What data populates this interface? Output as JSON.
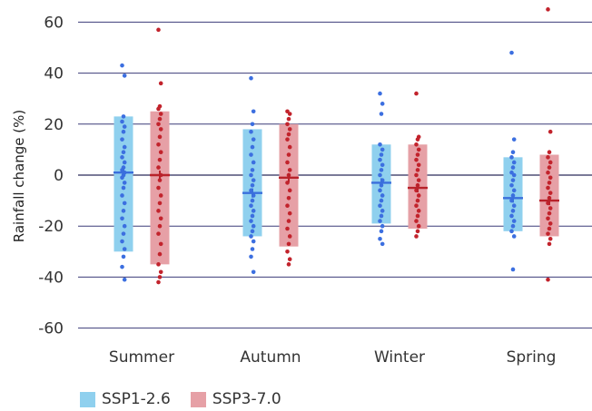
{
  "chart_data": {
    "type": "box",
    "ylabel": "Rainfall change (%)",
    "ylim": [
      -60,
      65
    ],
    "yticks": [
      -60,
      -40,
      -20,
      0,
      20,
      40,
      60
    ],
    "categories": [
      "Summer",
      "Autumn",
      "Winter",
      "Spring"
    ],
    "grid": "horizontal",
    "legend_position": "bottom-left",
    "series": [
      {
        "name": "SSP1-2.6",
        "box_color": "#8fd0ee",
        "point_color": "#3c6fe0",
        "median_color": "#3a6fdc",
        "boxes": [
          {
            "low": -30,
            "high": 23,
            "median": 1
          },
          {
            "low": -24,
            "high": 18,
            "median": -7
          },
          {
            "low": -19,
            "high": 12,
            "median": -3
          },
          {
            "low": -22,
            "high": 7,
            "median": -9
          }
        ],
        "points": [
          [
            43,
            39,
            23,
            21,
            19,
            17,
            14,
            11,
            9,
            7,
            5,
            3,
            2,
            1,
            0,
            -1,
            -3,
            -5,
            -8,
            -11,
            -14,
            -17,
            -20,
            -23,
            -26,
            -29,
            -32,
            -36,
            -41
          ],
          [
            38,
            25,
            20,
            17,
            14,
            11,
            8,
            5,
            2,
            0,
            -2,
            -4,
            -6,
            -8,
            -10,
            -12,
            -14,
            -16,
            -18,
            -20,
            -22,
            -24,
            -26,
            -29,
            -32,
            -38
          ],
          [
            32,
            28,
            24,
            12,
            10,
            8,
            6,
            4,
            2,
            0,
            -2,
            -4,
            -6,
            -8,
            -10,
            -12,
            -14,
            -16,
            -18,
            -20,
            -22,
            -25,
            -27
          ],
          [
            48,
            14,
            9,
            7,
            5,
            3,
            1,
            0,
            -2,
            -4,
            -6,
            -8,
            -10,
            -12,
            -14,
            -16,
            -18,
            -20,
            -22,
            -24,
            -37
          ]
        ]
      },
      {
        "name": "SSP3-7.0",
        "box_color": "#e6a0a6",
        "point_color": "#c2232c",
        "median_color": "#b8222a",
        "boxes": [
          {
            "low": -35,
            "high": 25,
            "median": 0
          },
          {
            "low": -28,
            "high": 20,
            "median": -1
          },
          {
            "low": -21,
            "high": 12,
            "median": -5
          },
          {
            "low": -24,
            "high": 8,
            "median": -10
          }
        ],
        "points": [
          [
            57,
            36,
            27,
            26,
            24,
            22,
            20,
            18,
            15,
            12,
            9,
            6,
            3,
            0,
            -2,
            -5,
            -8,
            -11,
            -14,
            -17,
            -20,
            -23,
            -27,
            -31,
            -35,
            -38,
            -40,
            -42
          ],
          [
            25,
            24,
            22,
            20,
            18,
            16,
            14,
            11,
            8,
            5,
            2,
            0,
            -3,
            -6,
            -9,
            -12,
            -15,
            -18,
            -21,
            -24,
            -27,
            -30,
            -33,
            -35
          ],
          [
            32,
            15,
            14,
            12,
            10,
            8,
            6,
            4,
            2,
            0,
            -2,
            -4,
            -6,
            -8,
            -10,
            -12,
            -14,
            -16,
            -18,
            -20,
            -22,
            -24
          ],
          [
            65,
            17,
            9,
            7,
            5,
            3,
            1,
            -1,
            -3,
            -5,
            -7,
            -9,
            -11,
            -13,
            -15,
            -17,
            -19,
            -21,
            -23,
            -25,
            -27,
            -41
          ]
        ]
      }
    ]
  }
}
